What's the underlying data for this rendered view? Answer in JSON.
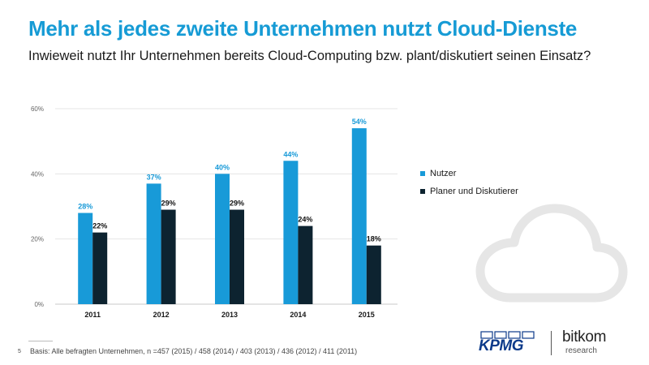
{
  "header": {
    "title": "Mehr als jedes zweite Unternehmen nutzt Cloud-Dienste",
    "subtitle": "Inwieweit nutzt Ihr Unternehmen bereits Cloud-Computing bzw. plant/diskutiert seinen Einsatz?"
  },
  "chart_data": {
    "type": "bar",
    "categories": [
      "2011",
      "2012",
      "2013",
      "2014",
      "2015"
    ],
    "series": [
      {
        "name": "Nutzer",
        "values": [
          28,
          37,
          40,
          44,
          54
        ],
        "color": "#189ad8",
        "label_color": "#189ad8"
      },
      {
        "name": "Planer und Diskutierer",
        "values": [
          22,
          29,
          29,
          24,
          18
        ],
        "color": "#0d2330",
        "label_color": "#111111"
      }
    ],
    "yticks": [
      0,
      20,
      40,
      60
    ],
    "ylim": [
      0,
      60
    ],
    "unit": "%",
    "legend_position": "right"
  },
  "footer": {
    "page_number": "5",
    "basis": "Basis: Alle befragten Unternehmen, n =457 (2015) / 458 (2014) / 403 (2013) / 436 (2012) / 411 (2011)"
  },
  "logos": {
    "kpmg": "KPMG",
    "bitkom": "bitkom",
    "bitkom_sub": "research"
  },
  "icons": {
    "cloud": "cloud-icon"
  },
  "colors": {
    "title": "#169bd5",
    "kpmg": "#0c3a8a"
  }
}
